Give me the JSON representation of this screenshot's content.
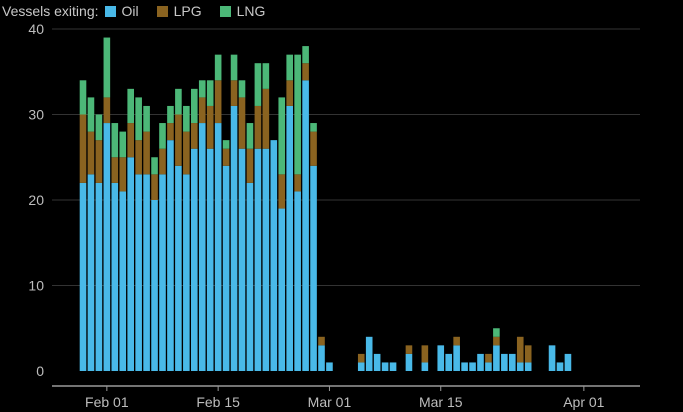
{
  "chart_data": {
    "type": "bar",
    "stacked": true,
    "legend_title": "Vessels exiting:",
    "legend_position": "top-left",
    "grid": true,
    "ylim": [
      0,
      40
    ],
    "yticks": [
      0,
      10,
      20,
      30,
      40
    ],
    "xticks": [
      {
        "label": "Feb 01",
        "index": 3
      },
      {
        "label": "Feb 15",
        "index": 17
      },
      {
        "label": "Mar 01",
        "index": 31
      },
      {
        "label": "Mar 15",
        "index": 45
      },
      {
        "label": "Apr 01",
        "index": 63
      }
    ],
    "colors": {
      "Oil": "#49b9e8",
      "LPG": "#8a6320",
      "LNG": "#4cb878"
    },
    "days": 66,
    "series": [
      {
        "name": "Oil",
        "values": [
          22,
          23,
          22,
          29,
          22,
          21,
          25,
          23,
          23,
          20,
          23,
          27,
          24,
          23,
          26,
          29,
          26,
          29,
          24,
          31,
          26,
          22,
          26,
          26,
          27,
          19,
          31,
          21,
          34,
          24,
          3,
          1,
          0,
          0,
          0,
          1,
          4,
          2,
          1,
          1,
          0,
          2,
          0,
          1,
          0,
          3,
          2,
          3,
          1,
          1,
          2,
          1,
          3,
          2,
          2,
          1,
          1,
          0,
          0,
          3,
          1,
          2,
          0,
          0,
          0,
          0
        ]
      },
      {
        "name": "LPG",
        "values": [
          8,
          5,
          5,
          3,
          3,
          4,
          4,
          4,
          5,
          3,
          3,
          2,
          6,
          5,
          3,
          3,
          5,
          5,
          2,
          3,
          6,
          4,
          5,
          7,
          0,
          4,
          3,
          2,
          2,
          4,
          1,
          0,
          0,
          0,
          0,
          1,
          0,
          0,
          0,
          0,
          0,
          1,
          0,
          2,
          0,
          0,
          0,
          1,
          0,
          0,
          0,
          1,
          1,
          0,
          0,
          3,
          2,
          0,
          0,
          0,
          0,
          0,
          0,
          0,
          0,
          0
        ]
      },
      {
        "name": "LNG",
        "values": [
          4,
          4,
          3,
          7,
          4,
          3,
          4,
          5,
          3,
          2,
          3,
          2,
          3,
          3,
          4,
          2,
          3,
          3,
          1,
          3,
          2,
          3,
          5,
          3,
          0,
          9,
          3,
          14,
          2,
          1,
          0,
          0,
          0,
          0,
          0,
          0,
          0,
          0,
          0,
          0,
          0,
          0,
          0,
          0,
          0,
          0,
          0,
          0,
          0,
          0,
          0,
          0,
          1,
          0,
          0,
          0,
          0,
          0,
          0,
          0,
          0,
          0,
          0,
          0,
          0,
          0
        ]
      }
    ]
  }
}
